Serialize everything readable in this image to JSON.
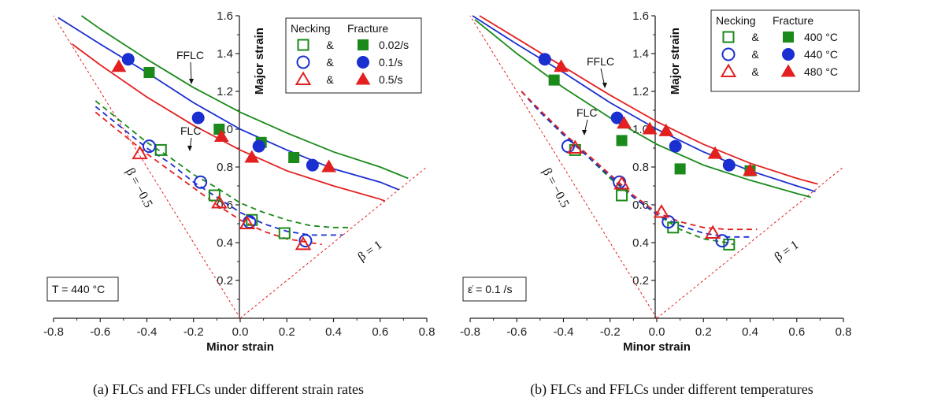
{
  "chart_data": [
    {
      "type": "scatter",
      "caption": "(a) FLCs and FFLCs under different strain rates",
      "xlabel": "Minor strain",
      "ylabel": "Major strain",
      "xlim": [
        -0.8,
        0.8
      ],
      "ylim": [
        0,
        1.6
      ],
      "xticks": [
        "-0.8",
        "-0.6",
        "-0.4",
        "-0.2",
        "0.0",
        "0.2",
        "0.4",
        "0.6",
        "0.8"
      ],
      "yticks": [
        "0.2",
        "0.4",
        "0.6",
        "0.8",
        "1.0",
        "1.2",
        "1.4",
        "1.6"
      ],
      "legend_header_necking": "Necking",
      "legend_header_fracture": "Fracture",
      "legend_amp": "&",
      "condition_label": "T = 440 °C",
      "ffl_label": "FFLC",
      "flc_label": "FLC",
      "beta_neg_label": "β = −0.5",
      "beta_pos_label": "β = 1",
      "series": [
        {
          "name": "0.02/s",
          "color": "#1a8a1a",
          "necking": [
            [
              -0.34,
              0.89
            ],
            [
              -0.11,
              0.65
            ],
            [
              0.05,
              0.52
            ],
            [
              0.19,
              0.45
            ]
          ],
          "fracture": [
            [
              -0.39,
              1.3
            ],
            [
              -0.09,
              1.0
            ],
            [
              0.09,
              0.93
            ],
            [
              0.23,
              0.85
            ]
          ],
          "flc": [
            [
              -0.62,
              1.15
            ],
            [
              -0.5,
              1.03
            ],
            [
              -0.4,
              0.93
            ],
            [
              -0.3,
              0.85
            ],
            [
              -0.2,
              0.76
            ],
            [
              -0.1,
              0.69
            ],
            [
              0,
              0.61
            ],
            [
              0.1,
              0.56
            ],
            [
              0.2,
              0.52
            ],
            [
              0.3,
              0.49
            ],
            [
              0.4,
              0.48
            ],
            [
              0.48,
              0.48
            ]
          ],
          "fflc": [
            [
              -0.68,
              1.6
            ],
            [
              -0.6,
              1.53
            ],
            [
              -0.4,
              1.37
            ],
            [
              -0.2,
              1.22
            ],
            [
              0,
              1.09
            ],
            [
              0.2,
              0.98
            ],
            [
              0.4,
              0.88
            ],
            [
              0.6,
              0.8
            ],
            [
              0.72,
              0.74
            ]
          ]
        },
        {
          "name": "0.1/s",
          "color": "#1a2fd0",
          "necking": [
            [
              -0.39,
              0.91
            ],
            [
              -0.17,
              0.72
            ],
            [
              0.04,
              0.51
            ],
            [
              0.28,
              0.41
            ]
          ],
          "fracture": [
            [
              -0.48,
              1.37
            ],
            [
              -0.18,
              1.06
            ],
            [
              0.08,
              0.91
            ],
            [
              0.31,
              0.81
            ]
          ],
          "flc": [
            [
              -0.62,
              1.12
            ],
            [
              -0.5,
              1.0
            ],
            [
              -0.4,
              0.9
            ],
            [
              -0.3,
              0.82
            ],
            [
              -0.2,
              0.72
            ],
            [
              -0.1,
              0.64
            ],
            [
              0,
              0.56
            ],
            [
              0.1,
              0.5
            ],
            [
              0.2,
              0.46
            ],
            [
              0.3,
              0.44
            ],
            [
              0.4,
              0.44
            ],
            [
              0.44,
              0.44
            ]
          ],
          "fflc": [
            [
              -0.78,
              1.59
            ],
            [
              -0.6,
              1.45
            ],
            [
              -0.4,
              1.3
            ],
            [
              -0.2,
              1.14
            ],
            [
              0,
              1.0
            ],
            [
              0.2,
              0.89
            ],
            [
              0.4,
              0.79
            ],
            [
              0.6,
              0.72
            ],
            [
              0.68,
              0.68
            ]
          ]
        },
        {
          "name": "0.5/s",
          "color": "#e32020",
          "necking": [
            [
              -0.43,
              0.87
            ],
            [
              -0.09,
              0.61
            ],
            [
              0.03,
              0.5
            ],
            [
              0.27,
              0.39
            ]
          ],
          "fracture": [
            [
              -0.52,
              1.33
            ],
            [
              -0.08,
              0.96
            ],
            [
              0.05,
              0.85
            ],
            [
              0.38,
              0.8
            ]
          ],
          "flc": [
            [
              -0.62,
              1.09
            ],
            [
              -0.5,
              0.97
            ],
            [
              -0.4,
              0.87
            ],
            [
              -0.3,
              0.78
            ],
            [
              -0.2,
              0.69
            ],
            [
              -0.1,
              0.6
            ],
            [
              0,
              0.52
            ],
            [
              0.1,
              0.46
            ],
            [
              0.2,
              0.42
            ],
            [
              0.3,
              0.4
            ],
            [
              0.35,
              0.39
            ]
          ],
          "fflc": [
            [
              -0.72,
              1.45
            ],
            [
              -0.6,
              1.34
            ],
            [
              -0.4,
              1.17
            ],
            [
              -0.2,
              1.02
            ],
            [
              0,
              0.89
            ],
            [
              0.2,
              0.78
            ],
            [
              0.4,
              0.7
            ],
            [
              0.6,
              0.63
            ],
            [
              0.62,
              0.62
            ]
          ]
        }
      ]
    },
    {
      "type": "scatter",
      "caption": "(b) FLCs and FFLCs under different temperatures",
      "xlabel": "Minor strain",
      "ylabel": "Major strain",
      "xlim": [
        -0.8,
        0.8
      ],
      "ylim": [
        0,
        1.6
      ],
      "xticks": [
        "-0.8",
        "-0.6",
        "-0.4",
        "-0.2",
        "0.0",
        "0.2",
        "0.4",
        "0.6",
        "0.8"
      ],
      "yticks": [
        "0.2",
        "0.4",
        "0.6",
        "0.8",
        "1.0",
        "1.2",
        "1.4",
        "1.6"
      ],
      "legend_header_necking": "Necking",
      "legend_header_fracture": "Fracture",
      "legend_amp": "&",
      "condition_label": "ε̇ = 0.1 /s",
      "ffl_label": "FFLC",
      "flc_label": "FLC",
      "beta_neg_label": "β = −0.5",
      "beta_pos_label": "β = 1",
      "series": [
        {
          "name": "400 °C",
          "color": "#1a8a1a",
          "necking": [
            [
              -0.35,
              0.89
            ],
            [
              -0.15,
              0.65
            ],
            [
              0.07,
              0.48
            ],
            [
              0.31,
              0.39
            ]
          ],
          "fracture": [
            [
              -0.44,
              1.26
            ],
            [
              -0.15,
              0.94
            ],
            [
              0.1,
              0.79
            ],
            [
              0.4,
              0.78
            ]
          ],
          "flc": [
            [
              -0.58,
              1.2
            ],
            [
              -0.5,
              1.09
            ],
            [
              -0.4,
              0.97
            ],
            [
              -0.3,
              0.86
            ],
            [
              -0.2,
              0.74
            ],
            [
              -0.1,
              0.64
            ],
            [
              0,
              0.55
            ],
            [
              0.1,
              0.47
            ],
            [
              0.2,
              0.42
            ],
            [
              0.3,
              0.4
            ],
            [
              0.33,
              0.39
            ]
          ],
          "fflc": [
            [
              -0.78,
              1.58
            ],
            [
              -0.6,
              1.4
            ],
            [
              -0.4,
              1.22
            ],
            [
              -0.2,
              1.06
            ],
            [
              0,
              0.92
            ],
            [
              0.2,
              0.81
            ],
            [
              0.4,
              0.73
            ],
            [
              0.6,
              0.66
            ],
            [
              0.66,
              0.64
            ]
          ]
        },
        {
          "name": "440 °C",
          "color": "#1a2fd0",
          "necking": [
            [
              -0.38,
              0.91
            ],
            [
              -0.16,
              0.72
            ],
            [
              0.05,
              0.51
            ],
            [
              0.28,
              0.41
            ]
          ],
          "fracture": [
            [
              -0.48,
              1.37
            ],
            [
              -0.17,
              1.06
            ],
            [
              0.08,
              0.91
            ],
            [
              0.31,
              0.81
            ]
          ],
          "flc": [
            [
              -0.58,
              1.2
            ],
            [
              -0.5,
              1.09
            ],
            [
              -0.4,
              0.97
            ],
            [
              -0.3,
              0.86
            ],
            [
              -0.2,
              0.75
            ],
            [
              -0.1,
              0.64
            ],
            [
              0,
              0.55
            ],
            [
              0.1,
              0.49
            ],
            [
              0.2,
              0.45
            ],
            [
              0.3,
              0.43
            ],
            [
              0.41,
              0.43
            ]
          ],
          "fflc": [
            [
              -0.79,
              1.6
            ],
            [
              -0.6,
              1.45
            ],
            [
              -0.4,
              1.3
            ],
            [
              -0.2,
              1.14
            ],
            [
              0,
              1.0
            ],
            [
              0.2,
              0.88
            ],
            [
              0.4,
              0.78
            ],
            [
              0.6,
              0.7
            ],
            [
              0.68,
              0.67
            ]
          ]
        },
        {
          "name": "480 °C",
          "color": "#e32020",
          "necking": [
            [
              -0.35,
              0.9
            ],
            [
              -0.15,
              0.71
            ],
            [
              0.02,
              0.56
            ],
            [
              0.24,
              0.45
            ]
          ],
          "fracture": [
            [
              -0.41,
              1.33
            ],
            [
              -0.14,
              1.03
            ],
            [
              -0.03,
              1.0
            ],
            [
              0.04,
              0.99
            ],
            [
              0.25,
              0.87
            ],
            [
              0.4,
              0.78
            ]
          ],
          "flc": [
            [
              -0.58,
              1.2
            ],
            [
              -0.5,
              1.1
            ],
            [
              -0.4,
              0.98
            ],
            [
              -0.3,
              0.87
            ],
            [
              -0.2,
              0.76
            ],
            [
              -0.1,
              0.65
            ],
            [
              0,
              0.56
            ],
            [
              0.1,
              0.51
            ],
            [
              0.2,
              0.48
            ],
            [
              0.3,
              0.47
            ],
            [
              0.43,
              0.47
            ]
          ],
          "fflc": [
            [
              -0.76,
              1.6
            ],
            [
              -0.6,
              1.48
            ],
            [
              -0.4,
              1.33
            ],
            [
              -0.2,
              1.18
            ],
            [
              0,
              1.04
            ],
            [
              0.2,
              0.92
            ],
            [
              0.4,
              0.82
            ],
            [
              0.6,
              0.74
            ],
            [
              0.69,
              0.71
            ]
          ]
        }
      ]
    }
  ]
}
